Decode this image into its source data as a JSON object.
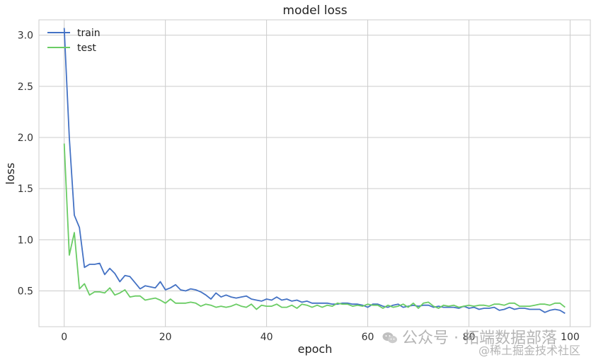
{
  "chart_data": {
    "type": "line",
    "title": "model loss",
    "xlabel": "epoch",
    "ylabel": "loss",
    "xlim": [
      -5,
      104
    ],
    "ylim": [
      0.15,
      3.15
    ],
    "xticks": [
      0,
      20,
      40,
      60,
      80,
      100
    ],
    "yticks": [
      0.5,
      1.0,
      1.5,
      2.0,
      2.5,
      3.0
    ],
    "xtick_labels": [
      "0",
      "20",
      "40",
      "60",
      "80",
      "100"
    ],
    "ytick_labels": [
      "0.5",
      "1.0",
      "1.5",
      "2.0",
      "2.5",
      "3.0"
    ],
    "grid": true,
    "legend_position": "upper-left",
    "series": [
      {
        "name": "train",
        "color": "#4472c4",
        "values": [
          3.07,
          2.0,
          1.24,
          1.12,
          0.73,
          0.76,
          0.76,
          0.77,
          0.66,
          0.72,
          0.67,
          0.59,
          0.65,
          0.64,
          0.58,
          0.52,
          0.55,
          0.54,
          0.53,
          0.59,
          0.51,
          0.53,
          0.56,
          0.51,
          0.5,
          0.52,
          0.51,
          0.49,
          0.46,
          0.42,
          0.48,
          0.44,
          0.46,
          0.44,
          0.43,
          0.44,
          0.45,
          0.42,
          0.41,
          0.4,
          0.42,
          0.41,
          0.44,
          0.41,
          0.42,
          0.4,
          0.41,
          0.39,
          0.4,
          0.38,
          0.38,
          0.38,
          0.38,
          0.37,
          0.37,
          0.38,
          0.38,
          0.37,
          0.37,
          0.36,
          0.34,
          0.37,
          0.37,
          0.35,
          0.34,
          0.36,
          0.37,
          0.34,
          0.35,
          0.36,
          0.35,
          0.36,
          0.36,
          0.34,
          0.35,
          0.34,
          0.34,
          0.34,
          0.33,
          0.35,
          0.33,
          0.34,
          0.32,
          0.33,
          0.33,
          0.34,
          0.31,
          0.32,
          0.34,
          0.32,
          0.33,
          0.33,
          0.32,
          0.32,
          0.32,
          0.29,
          0.31,
          0.32,
          0.31,
          0.28
        ]
      },
      {
        "name": "test",
        "color": "#6acc64",
        "values": [
          1.94,
          0.85,
          1.07,
          0.52,
          0.57,
          0.46,
          0.49,
          0.49,
          0.48,
          0.53,
          0.46,
          0.48,
          0.51,
          0.44,
          0.45,
          0.45,
          0.41,
          0.42,
          0.43,
          0.41,
          0.38,
          0.42,
          0.38,
          0.38,
          0.38,
          0.39,
          0.38,
          0.35,
          0.37,
          0.36,
          0.34,
          0.35,
          0.34,
          0.35,
          0.37,
          0.35,
          0.34,
          0.37,
          0.32,
          0.36,
          0.35,
          0.35,
          0.37,
          0.34,
          0.34,
          0.36,
          0.33,
          0.37,
          0.36,
          0.34,
          0.36,
          0.34,
          0.36,
          0.35,
          0.38,
          0.37,
          0.37,
          0.35,
          0.36,
          0.35,
          0.37,
          0.36,
          0.36,
          0.33,
          0.36,
          0.34,
          0.35,
          0.37,
          0.34,
          0.38,
          0.33,
          0.38,
          0.39,
          0.35,
          0.33,
          0.36,
          0.35,
          0.36,
          0.34,
          0.35,
          0.36,
          0.35,
          0.36,
          0.36,
          0.35,
          0.37,
          0.37,
          0.36,
          0.38,
          0.38,
          0.35,
          0.35,
          0.35,
          0.36,
          0.37,
          0.37,
          0.36,
          0.38,
          0.38,
          0.34
        ]
      }
    ]
  },
  "watermark": {
    "main": "公众号 · 拓端数据部落",
    "sub": "@稀土掘金技术社区"
  }
}
